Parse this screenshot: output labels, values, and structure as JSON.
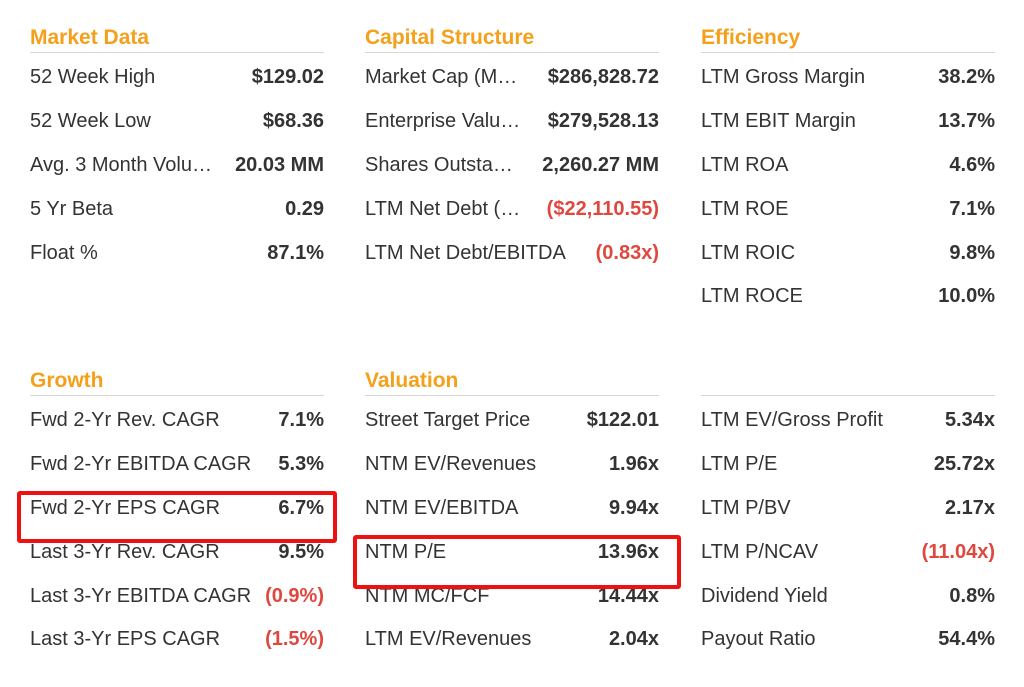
{
  "market_data": {
    "title": "Market Data",
    "rows": [
      {
        "label": "52 Week High",
        "value": "$129.02"
      },
      {
        "label": "52 Week Low",
        "value": "$68.36"
      },
      {
        "label": "Avg. 3 Month Volu…",
        "value": "20.03 MM"
      },
      {
        "label": "5 Yr Beta",
        "value": "0.29"
      },
      {
        "label": "Float %",
        "value": "87.1%"
      }
    ]
  },
  "capital_structure": {
    "title": "Capital Structure",
    "rows": [
      {
        "label": "Market Cap (M…",
        "value": "$286,828.72"
      },
      {
        "label": "Enterprise Valu…",
        "value": "$279,528.13"
      },
      {
        "label": "Shares Outsta…",
        "value": "2,260.27 MM"
      },
      {
        "label": "LTM Net Debt (…",
        "value": "($22,110.55)"
      },
      {
        "label": "LTM Net Debt/EBITDA",
        "value": "(0.83x)"
      }
    ]
  },
  "efficiency": {
    "title": "Efficiency",
    "rows": [
      {
        "label": "LTM Gross Margin",
        "value": "38.2%"
      },
      {
        "label": "LTM EBIT Margin",
        "value": "13.7%"
      },
      {
        "label": "LTM ROA",
        "value": "4.6%"
      },
      {
        "label": "LTM ROE",
        "value": "7.1%"
      },
      {
        "label": "LTM ROIC",
        "value": "9.8%"
      },
      {
        "label": "LTM ROCE",
        "value": "10.0%"
      }
    ]
  },
  "growth": {
    "title": "Growth",
    "rows": [
      {
        "label": "Fwd 2-Yr Rev. CAGR",
        "value": "7.1%"
      },
      {
        "label": "Fwd 2-Yr EBITDA CAGR",
        "value": "5.3%"
      },
      {
        "label": "Fwd 2-Yr EPS CAGR",
        "value": "6.7%"
      },
      {
        "label": "Last 3-Yr Rev. CAGR",
        "value": "9.5%"
      },
      {
        "label": "Last 3-Yr EBITDA CAGR",
        "value": "(0.9%)"
      },
      {
        "label": "Last 3-Yr EPS CAGR",
        "value": "(1.5%)"
      }
    ]
  },
  "valuation": {
    "title": "Valuation",
    "rows": [
      {
        "label": "Street Target Price",
        "value": "$122.01"
      },
      {
        "label": "NTM EV/Revenues",
        "value": "1.96x"
      },
      {
        "label": "NTM EV/EBITDA",
        "value": "9.94x"
      },
      {
        "label": "NTM P/E",
        "value": "13.96x"
      },
      {
        "label": "NTM MC/FCF",
        "value": "14.44x"
      },
      {
        "label": "LTM EV/Revenues",
        "value": "2.04x"
      }
    ]
  },
  "valuation_2": {
    "rows": [
      {
        "label": "LTM EV/Gross Profit",
        "value": "5.34x"
      },
      {
        "label": "LTM P/E",
        "value": "25.72x"
      },
      {
        "label": "LTM P/BV",
        "value": "2.17x"
      },
      {
        "label": "LTM P/NCAV",
        "value": "(11.04x)"
      },
      {
        "label": "Dividend Yield",
        "value": "0.8%"
      },
      {
        "label": "Payout Ratio",
        "value": "54.4%"
      }
    ]
  },
  "colors": {
    "accent": "#F5A01A",
    "negative": "#E0473F",
    "highlight": "#EE1111"
  }
}
